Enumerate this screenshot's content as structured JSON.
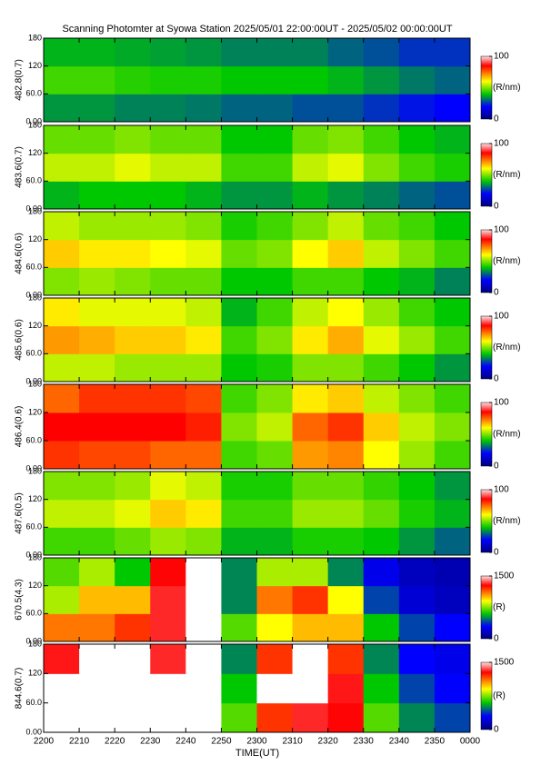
{
  "title": "Scanning Photomter at Syowa Station  2025/05/01 22:00:00UT - 2025/05/02 00:00:00UT",
  "x_axis": {
    "label": "TIME(UT)",
    "bins": [
      "2200",
      "2210",
      "2220",
      "2230",
      "2240",
      "2250",
      "2300",
      "2310",
      "2320",
      "2330",
      "2340",
      "2350",
      "0000"
    ]
  },
  "chart_data": [
    {
      "type": "heatmap",
      "ylabel": "482.8(0.7)",
      "ylim": [
        0,
        180
      ],
      "yticks": [
        {
          "value": 0,
          "label": "0.00"
        },
        {
          "value": 60,
          "label": "60.0"
        },
        120,
        180
      ],
      "zlim": [
        0,
        100
      ],
      "zticks": [
        0,
        100
      ],
      "zlabel": "(R/nm)",
      "values": [
        [
          35,
          35,
          33,
          33,
          32,
          30,
          30,
          28,
          28,
          25,
          22,
          20
        ],
        [
          45,
          45,
          43,
          42,
          42,
          40,
          40,
          40,
          38,
          35,
          32,
          30
        ],
        [
          38,
          38,
          37,
          36,
          35,
          33,
          33,
          33,
          30,
          28,
          25,
          25
        ]
      ]
    },
    {
      "type": "heatmap",
      "ylabel": "483.6(0.7)",
      "ylim": [
        0,
        180
      ],
      "yticks": [
        {
          "value": 0,
          "label": "0.00"
        },
        {
          "value": 60,
          "label": "60.0"
        },
        120,
        180
      ],
      "zlim": [
        0,
        100
      ],
      "zticks": [
        0,
        100
      ],
      "zlabel": "(R/nm)",
      "values": [
        [
          38,
          40,
          40,
          40,
          38,
          35,
          35,
          38,
          35,
          33,
          30,
          28
        ],
        [
          55,
          55,
          58,
          55,
          55,
          45,
          45,
          55,
          58,
          50,
          45,
          42
        ],
        [
          48,
          48,
          50,
          48,
          48,
          40,
          40,
          48,
          50,
          45,
          40,
          38
        ]
      ]
    },
    {
      "type": "heatmap",
      "ylabel": "484.6(0.6)",
      "ylim": [
        0,
        180
      ],
      "yticks": [
        {
          "value": 0,
          "label": "0.00"
        },
        {
          "value": 60,
          "label": "60.0"
        },
        120,
        180
      ],
      "zlim": [
        0,
        100
      ],
      "zticks": [
        0,
        100
      ],
      "zlabel": "(R/nm)",
      "values": [
        [
          50,
          52,
          50,
          48,
          48,
          40,
          40,
          45,
          45,
          40,
          38,
          33
        ],
        [
          65,
          62,
          62,
          60,
          58,
          48,
          50,
          60,
          65,
          55,
          50,
          45
        ],
        [
          55,
          52,
          52,
          52,
          50,
          42,
          45,
          50,
          55,
          48,
          45,
          40
        ]
      ]
    },
    {
      "type": "heatmap",
      "ylabel": "485.6(0.6)",
      "ylim": [
        0,
        180
      ],
      "yticks": [
        {
          "value": 0,
          "label": "0.00"
        },
        {
          "value": 60,
          "label": "60.0"
        },
        120,
        180
      ],
      "zlim": [
        0,
        100
      ],
      "zticks": [
        0,
        100
      ],
      "zlabel": "(R/nm)",
      "values": [
        [
          55,
          55,
          52,
          52,
          52,
          40,
          42,
          50,
          50,
          45,
          40,
          35
        ],
        [
          70,
          68,
          65,
          65,
          62,
          45,
          50,
          62,
          68,
          58,
          52,
          45
        ],
        [
          62,
          58,
          58,
          58,
          55,
          38,
          45,
          55,
          60,
          52,
          45,
          40
        ]
      ]
    },
    {
      "type": "heatmap",
      "ylabel": "486.4(0.6)",
      "ylim": [
        0,
        180
      ],
      "yticks": [
        {
          "value": 0,
          "label": "0.00"
        },
        {
          "value": 60,
          "label": "60.0"
        },
        120,
        180
      ],
      "zlim": [
        0,
        100
      ],
      "zticks": [
        0,
        100
      ],
      "zlabel": "(R/nm)",
      "values": [
        [
          80,
          78,
          78,
          75,
          75,
          45,
          48,
          70,
          72,
          60,
          52,
          45
        ],
        [
          85,
          85,
          85,
          85,
          82,
          50,
          55,
          75,
          80,
          65,
          55,
          50
        ],
        [
          75,
          80,
          80,
          80,
          78,
          45,
          50,
          62,
          65,
          55,
          50,
          45
        ]
      ]
    },
    {
      "type": "heatmap",
      "ylabel": "487.6(0.5)",
      "ylim": [
        0,
        180
      ],
      "yticks": [
        {
          "value": 0,
          "label": "0.00"
        },
        {
          "value": 60,
          "label": "60.0"
        },
        120,
        180
      ],
      "zlim": [
        0,
        100
      ],
      "zticks": [
        0,
        100
      ],
      "zlabel": "(R/nm)",
      "values": [
        [
          45,
          45,
          48,
          52,
          50,
          38,
          38,
          42,
          42,
          40,
          35,
          30
        ],
        [
          55,
          55,
          58,
          65,
          62,
          45,
          45,
          52,
          52,
          48,
          42,
          38
        ],
        [
          50,
          50,
          52,
          58,
          55,
          42,
          42,
          48,
          48,
          44,
          40,
          35
        ]
      ]
    },
    {
      "type": "heatmap",
      "ylabel": "670.5(4.3)",
      "ylim": [
        0,
        180
      ],
      "yticks": [
        {
          "value": 0,
          "label": "0.00"
        },
        {
          "value": 60,
          "label": "60.0"
        },
        120,
        180
      ],
      "zlim": [
        0,
        1500
      ],
      "zticks": [
        0,
        1500
      ],
      "zlabel": "(R)",
      "values": [
        [
          1100,
          1100,
          1200,
          1500,
          1600,
          700,
          900,
          1000,
          1000,
          600,
          400,
          300
        ],
        [
          800,
          1000,
          1000,
          1500,
          1600,
          500,
          1100,
          1200,
          900,
          400,
          200,
          150
        ],
        [
          700,
          800,
          600,
          1300,
          1600,
          500,
          800,
          800,
          500,
          250,
          150,
          120
        ]
      ]
    },
    {
      "type": "heatmap",
      "ylabel": "844.6(0.7)",
      "ylim": [
        0,
        180
      ],
      "yticks": [
        {
          "value": 0,
          "label": "0.00"
        },
        {
          "value": 60,
          "label": "60.0"
        },
        120,
        180
      ],
      "zlim": [
        0,
        1500
      ],
      "zticks": [
        0,
        1500
      ],
      "zlabel": "(R)",
      "values": [
        [
          1700,
          1700,
          1700,
          1700,
          1700,
          700,
          1200,
          1500,
          1300,
          700,
          500,
          400
        ],
        [
          1600,
          1700,
          1700,
          1700,
          1700,
          600,
          1600,
          1800,
          1400,
          600,
          400,
          300
        ],
        [
          1400,
          1600,
          1600,
          1500,
          1600,
          500,
          1200,
          1600,
          1200,
          500,
          300,
          250
        ]
      ]
    }
  ]
}
